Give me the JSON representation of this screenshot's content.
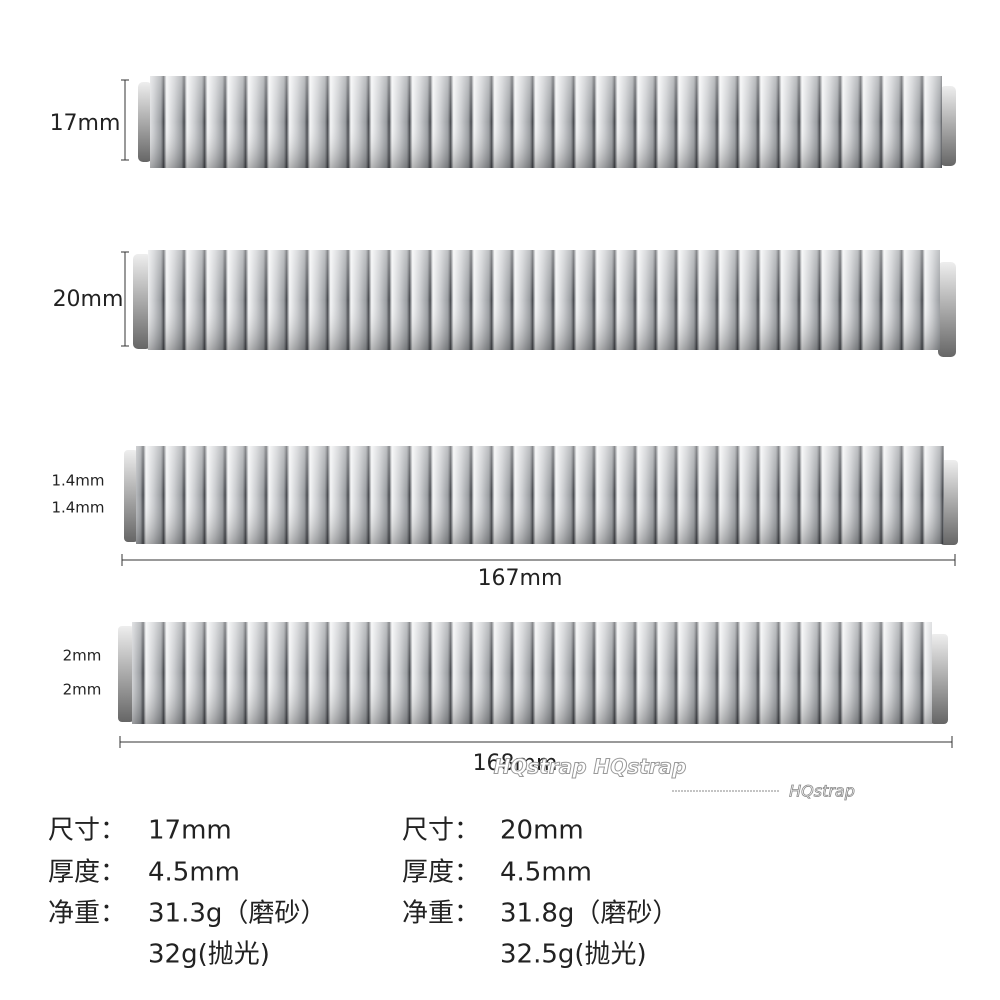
{
  "bands": [
    {
      "width_label": "17mm"
    },
    {
      "width_label": "20mm"
    },
    {
      "gap_labels": [
        "1.4mm",
        "1.4mm"
      ],
      "length_label": "167mm"
    },
    {
      "gap_labels": [
        "2mm",
        "2mm"
      ],
      "length_label": "168mm"
    }
  ],
  "watermarks": [
    "HQstrap HQstrap",
    "HQstrap"
  ],
  "specs": {
    "left": {
      "size_label": "尺寸：",
      "size": "17mm",
      "thickness_label": "厚度：",
      "thickness": "4.5mm",
      "weight_label": "净重：",
      "weight_matte": "31.3g（磨砂）",
      "weight_polished": "32g(抛光)"
    },
    "right": {
      "size_label": "尺寸：",
      "size": "20mm",
      "thickness_label": "厚度：",
      "thickness": "4.5mm",
      "weight_label": "净重：",
      "weight_matte": "31.8g（磨砂）",
      "weight_polished": "32.5g(抛光)"
    }
  }
}
